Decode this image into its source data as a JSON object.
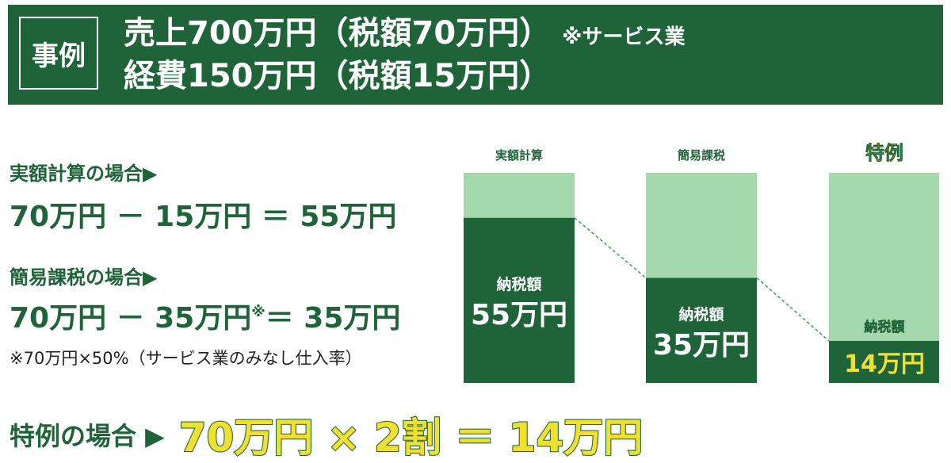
{
  "header": {
    "badge": "事例",
    "line1": "売上700万円（税額70万円）",
    "line1_note": "※サービス業",
    "line2": "経費150万円（税額15万円）"
  },
  "cases": {
    "actual_label": "実額計算の場合▶",
    "actual_equation": "70万円 － 15万円 ＝ 55万円",
    "simplified_label": "簡易課税の場合▶",
    "simplified_equation_left": "70万円 － 35万円",
    "simplified_equation_mark": "※",
    "simplified_equation_right": "＝ 35万円",
    "simplified_note": "※70万円×50%（サービス業のみなし仕入率）",
    "special_label": "特例の場合 ▶",
    "special_equation": "70万円 × 2割 ＝ 14万円"
  },
  "chart_data": {
    "type": "bar",
    "categories": [
      "実額計算",
      "簡易課税",
      "特例"
    ],
    "total": 70,
    "values": [
      55,
      35,
      14
    ],
    "bar_label": "納税額",
    "value_labels": [
      "55万円",
      "35万円",
      "14万円"
    ],
    "colors": {
      "dark": "#1f6438",
      "light": "#a6d8ae",
      "highlight": "#f0e030"
    }
  }
}
